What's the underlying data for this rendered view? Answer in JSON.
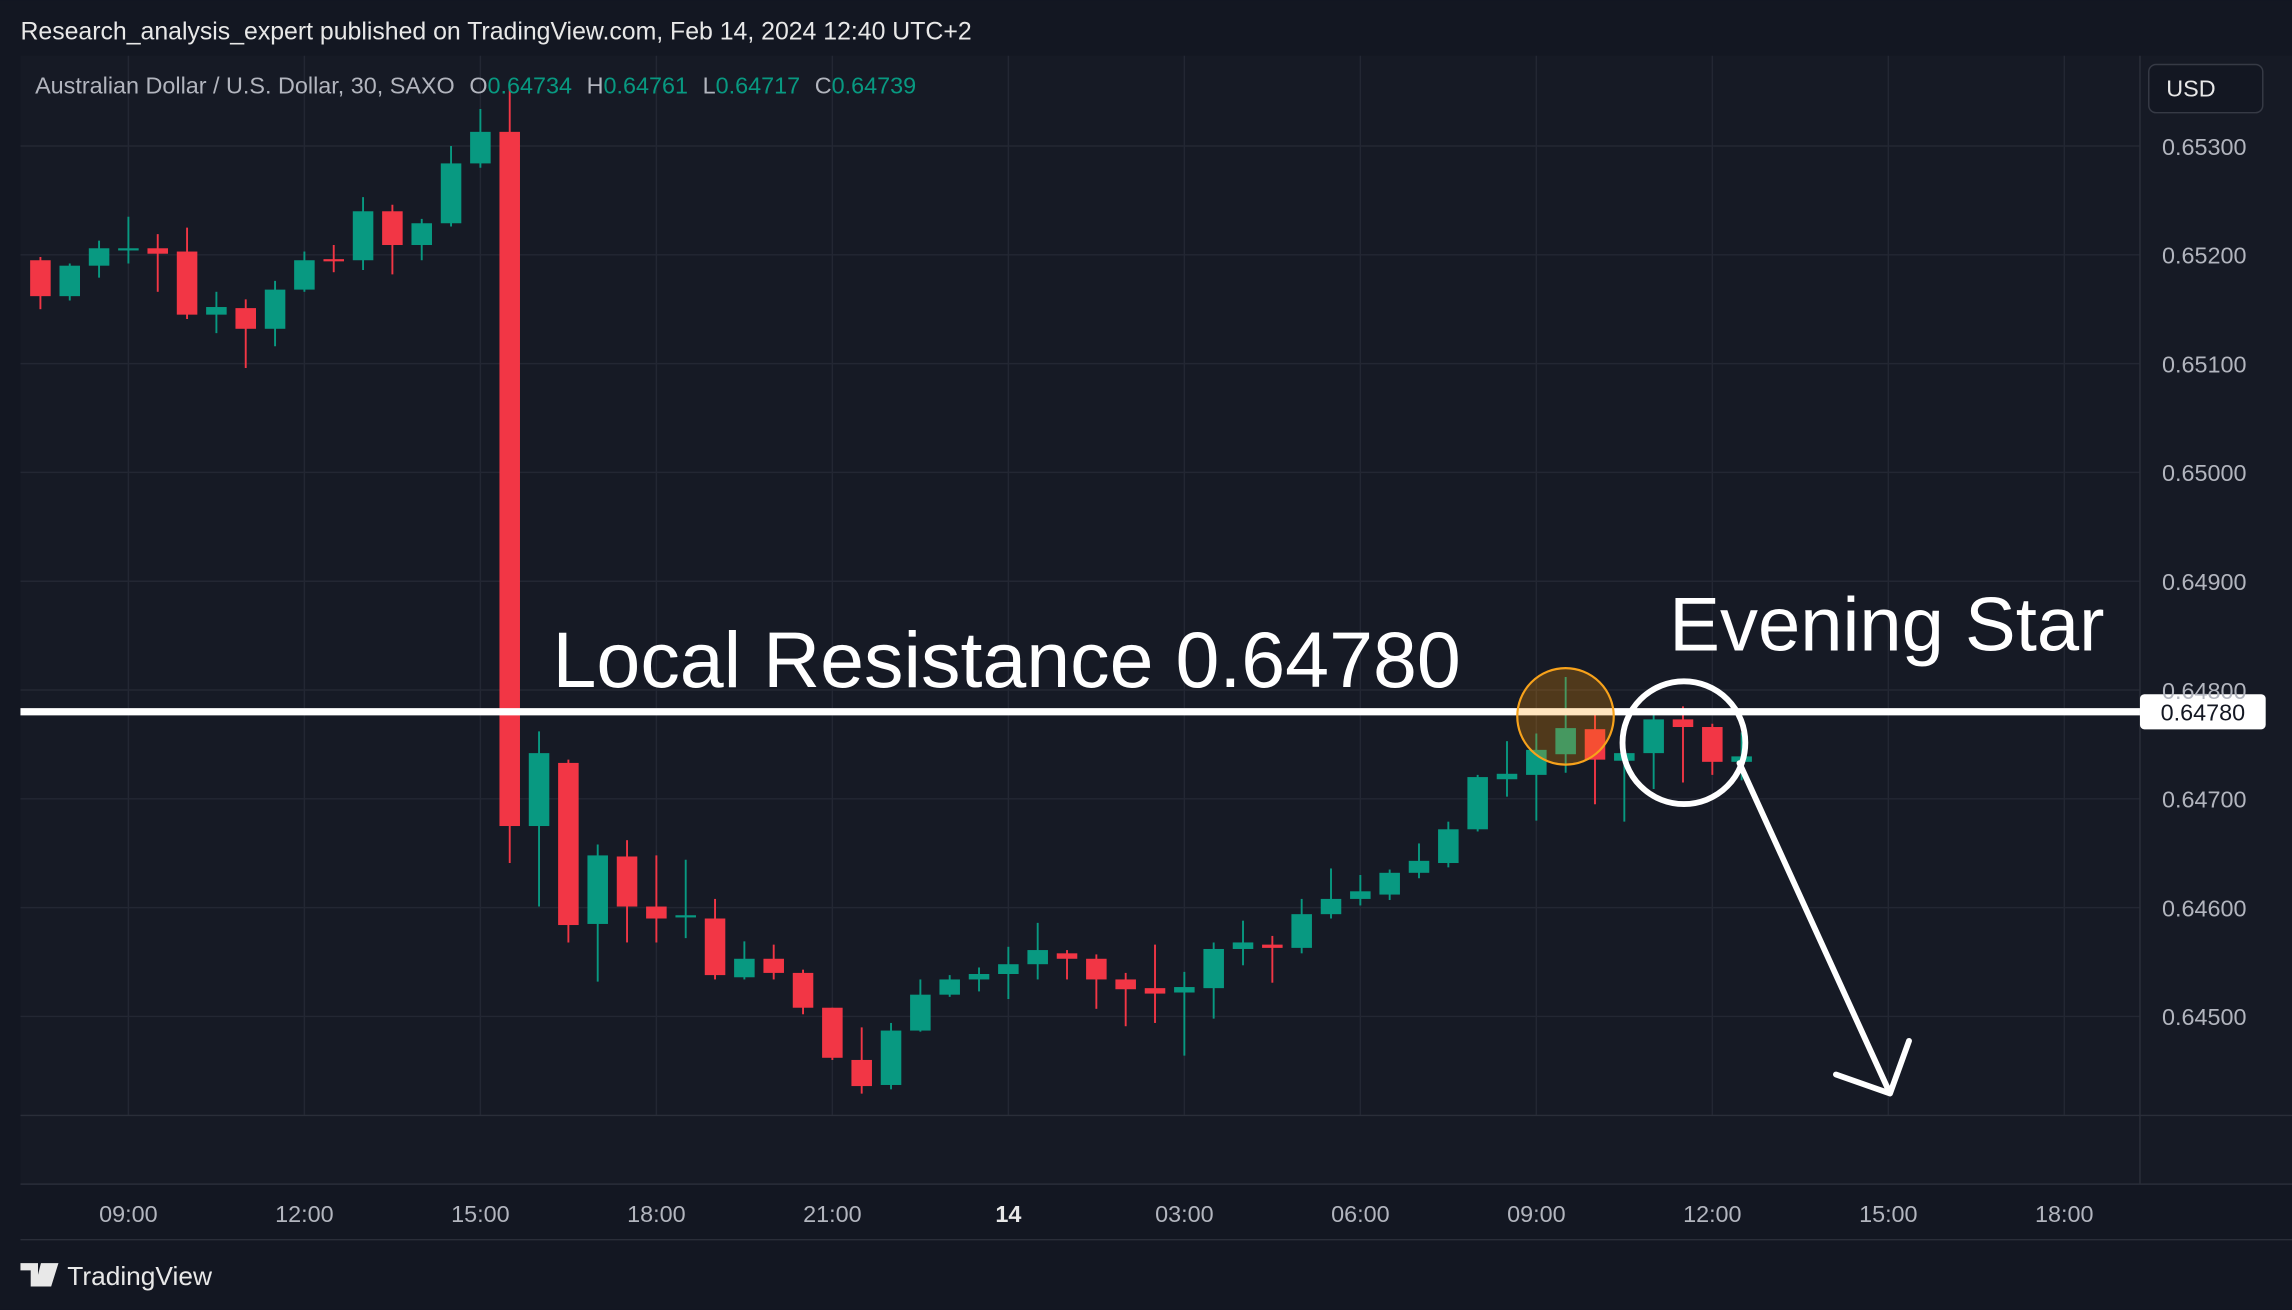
{
  "header": {
    "text": "Research_analysis_expert published on TradingView.com, Feb 14, 2024 12:40 UTC+2"
  },
  "brand": "TradingView",
  "currency_button": "USD",
  "chart_data": {
    "type": "candlestick",
    "title": "Australian Dollar / U.S. Dollar, 30, SAXO",
    "legend": [
      {
        "label": "O",
        "value": 0.64734
      },
      {
        "label": "H",
        "value": 0.64761
      },
      {
        "label": "L",
        "value": 0.64717
      },
      {
        "label": "C",
        "value": 0.64739
      }
    ],
    "x": [
      7.5,
      8,
      8.5,
      9,
      9.5,
      10,
      10.5,
      11,
      11.5,
      12,
      12.5,
      13,
      13.5,
      14,
      14.5,
      15,
      15.5,
      16,
      16.5,
      17,
      17.5,
      18,
      18.5,
      19,
      19.5,
      20,
      20.5,
      21,
      21.5,
      22,
      22.5,
      23,
      23.5,
      24,
      24.5,
      25,
      25.5,
      26,
      26.5,
      27,
      27.5,
      28,
      28.5,
      29,
      29.5,
      30,
      30.5,
      31,
      31.5,
      32,
      32.5,
      33,
      33.5,
      34,
      34.5,
      35,
      35.5,
      36,
      36.5
    ],
    "open": [
      0.65195,
      0.65162,
      0.6519,
      0.65204,
      0.65206,
      0.65203,
      0.65145,
      0.65151,
      0.65132,
      0.65168,
      0.65196,
      0.65195,
      0.6524,
      0.65209,
      0.65229,
      0.65284,
      0.65313,
      0.64675,
      0.64733,
      0.64585,
      0.64647,
      0.64601,
      0.64592,
      0.6459,
      0.64536,
      0.64553,
      0.6454,
      0.64508,
      0.6446,
      0.64437,
      0.64487,
      0.6452,
      0.64534,
      0.64539,
      0.64548,
      0.64558,
      0.64553,
      0.64534,
      0.64526,
      0.64522,
      0.64526,
      0.64562,
      0.64566,
      0.64563,
      0.64594,
      0.64608,
      0.64612,
      0.64632,
      0.64641,
      0.64672,
      0.64718,
      0.64722,
      0.64741,
      0.64764,
      0.64735,
      0.64742,
      0.64773,
      0.64766,
      0.64734
    ],
    "high": [
      0.65198,
      0.65192,
      0.65213,
      0.65235,
      0.65219,
      0.65225,
      0.65166,
      0.65159,
      0.65176,
      0.65203,
      0.65209,
      0.65253,
      0.65246,
      0.65233,
      0.653,
      0.65334,
      0.65354,
      0.64762,
      0.64736,
      0.64658,
      0.64662,
      0.64648,
      0.64644,
      0.64608,
      0.64569,
      0.64566,
      0.64543,
      0.64508,
      0.6449,
      0.64494,
      0.64534,
      0.64538,
      0.64545,
      0.64564,
      0.64586,
      0.64561,
      0.64557,
      0.6454,
      0.64566,
      0.64541,
      0.64568,
      0.64588,
      0.64574,
      0.64608,
      0.64636,
      0.6463,
      0.64635,
      0.64659,
      0.64679,
      0.64722,
      0.64753,
      0.6476,
      0.64812,
      0.64778,
      0.64752,
      0.64779,
      0.64785,
      0.64769,
      0.64761
    ],
    "low": [
      0.6515,
      0.65158,
      0.65179,
      0.65192,
      0.65166,
      0.65141,
      0.65128,
      0.65096,
      0.65116,
      0.65166,
      0.65184,
      0.65186,
      0.65182,
      0.65195,
      0.65226,
      0.6528,
      0.64641,
      0.64601,
      0.64568,
      0.64532,
      0.64568,
      0.64568,
      0.64572,
      0.64534,
      0.64534,
      0.64534,
      0.64502,
      0.6446,
      0.64429,
      0.64433,
      0.64486,
      0.64518,
      0.64523,
      0.64516,
      0.64534,
      0.64534,
      0.64507,
      0.64491,
      0.64494,
      0.64464,
      0.64498,
      0.64547,
      0.64531,
      0.64558,
      0.6459,
      0.64602,
      0.64607,
      0.64627,
      0.64637,
      0.6467,
      0.64702,
      0.6468,
      0.64724,
      0.64695,
      0.64679,
      0.64709,
      0.64715,
      0.64722,
      0.64717
    ],
    "close": [
      0.65162,
      0.6519,
      0.65206,
      0.65206,
      0.65201,
      0.65145,
      0.65152,
      0.65132,
      0.65168,
      0.65195,
      0.65195,
      0.6524,
      0.65209,
      0.65229,
      0.65284,
      0.65313,
      0.64675,
      0.64742,
      0.64584,
      0.64648,
      0.64601,
      0.6459,
      0.64593,
      0.64538,
      0.64553,
      0.6454,
      0.64508,
      0.64462,
      0.64436,
      0.64487,
      0.6452,
      0.64534,
      0.64539,
      0.64548,
      0.64561,
      0.64553,
      0.64534,
      0.64525,
      0.64521,
      0.64527,
      0.64562,
      0.64568,
      0.64563,
      0.64594,
      0.64608,
      0.64615,
      0.64632,
      0.64643,
      0.64672,
      0.6472,
      0.64723,
      0.64745,
      0.64765,
      0.64736,
      0.64742,
      0.64773,
      0.64766,
      0.64734,
      0.64739
    ],
    "up_color": "#089981",
    "down_color": "#f23645",
    "xlim": [
      7.16,
      43.29
    ],
    "xticks": [
      {
        "value": 9,
        "label": "09:00"
      },
      {
        "value": 12,
        "label": "12:00"
      },
      {
        "value": 15,
        "label": "15:00"
      },
      {
        "value": 18,
        "label": "18:00"
      },
      {
        "value": 21,
        "label": "21:00"
      },
      {
        "value": 24,
        "label": "14"
      },
      {
        "value": 27,
        "label": "03:00"
      },
      {
        "value": 30,
        "label": "06:00"
      },
      {
        "value": 33,
        "label": "09:00"
      },
      {
        "value": 36,
        "label": "12:00"
      },
      {
        "value": 39,
        "label": "15:00"
      },
      {
        "value": 42,
        "label": "18:00"
      }
    ],
    "ylim": [
      0.64409,
      0.65383
    ],
    "yticks": [
      {
        "value": 0.645,
        "label": "0.64500"
      },
      {
        "value": 0.646,
        "label": "0.64600"
      },
      {
        "value": 0.647,
        "label": "0.64700"
      },
      {
        "value": 0.648,
        "label": "0.64800"
      },
      {
        "value": 0.649,
        "label": "0.64900"
      },
      {
        "value": 0.65,
        "label": "0.65000"
      },
      {
        "value": 0.651,
        "label": "0.65100"
      },
      {
        "value": 0.652,
        "label": "0.65200"
      },
      {
        "value": 0.653,
        "label": "0.65300"
      }
    ],
    "grid": true,
    "resistance": {
      "value": 0.6478,
      "label": "0.64780"
    },
    "annotations": [
      "Local Resistance 0.64780",
      "Evening Star"
    ]
  }
}
